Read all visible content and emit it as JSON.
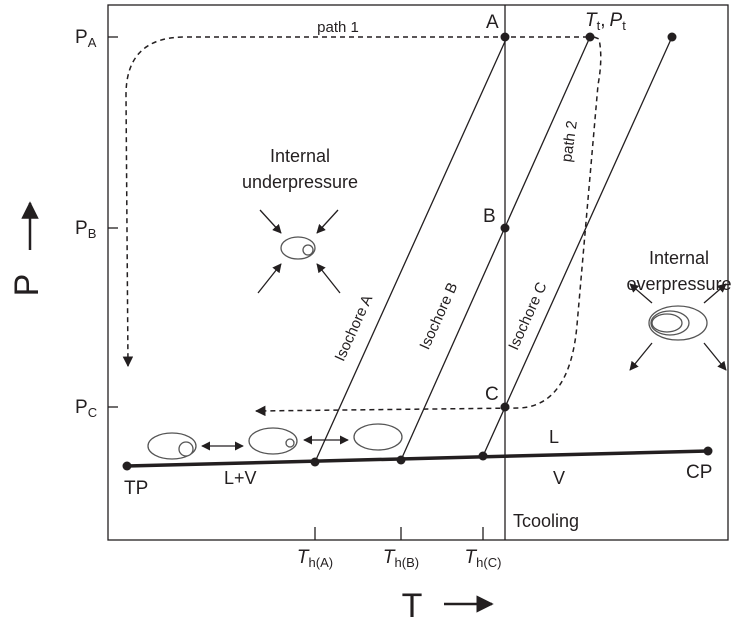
{
  "y_axis": {
    "label": "P",
    "ticks": [
      {
        "main": "P",
        "sub": "A"
      },
      {
        "main": "P",
        "sub": "B"
      },
      {
        "main": "P",
        "sub": "C"
      }
    ]
  },
  "x_axis": {
    "label": "T",
    "ticks": [
      {
        "main": "T",
        "sub": "h(A)"
      },
      {
        "main": "T",
        "sub": "h(B)"
      },
      {
        "main": "T",
        "sub": "h(C)"
      }
    ]
  },
  "points": {
    "a": "A",
    "b": "B",
    "c": "C",
    "tp": "TP",
    "cp": "CP"
  },
  "trapping_label": {
    "t": "T",
    "t_sub": "t",
    "sep": ",",
    "p": "P",
    "p_sub": "t"
  },
  "regions": {
    "lv": "L+V",
    "l": "L",
    "v": "V"
  },
  "isochores": [
    "Isochore A",
    "Isochore B",
    "Isochore C"
  ],
  "paths": [
    "path 1",
    "path 2"
  ],
  "cooling": "Tcooling",
  "underpressure": [
    "Internal",
    "underpressure"
  ],
  "overpressure": [
    "Internal",
    "overpressure"
  ]
}
